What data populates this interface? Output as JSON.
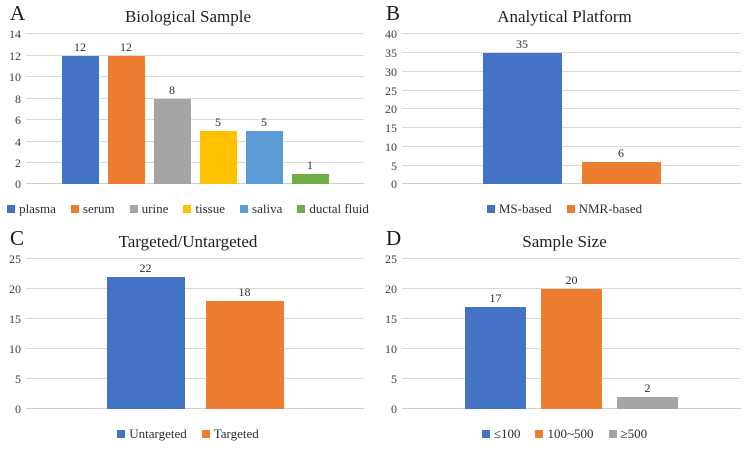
{
  "page": {
    "background": "#ffffff"
  },
  "palette": {
    "blue": "#4472C4",
    "orange": "#ED7D31",
    "gray": "#A5A5A5",
    "gold": "#FFC000",
    "light_blue": "#5B9BD5",
    "green": "#70AD47",
    "gridline": "#D9D9D9"
  },
  "chart_data": [
    {
      "type": "bar",
      "panel": "A",
      "title": "Biological Sample",
      "categories": [
        "plasma",
        "serum",
        "urine",
        "tissue",
        "saliva",
        "ductal fluid"
      ],
      "values": [
        12,
        12,
        8,
        5,
        5,
        1
      ],
      "colors": [
        "#4472C4",
        "#ED7D31",
        "#A5A5A5",
        "#FFC000",
        "#5B9BD5",
        "#70AD47"
      ],
      "ylim": [
        0,
        14
      ],
      "ytick_step": 2,
      "grid": true,
      "value_labels": true,
      "legend_position": "bottom"
    },
    {
      "type": "bar",
      "panel": "B",
      "title": "Analytical Platform",
      "categories": [
        "MS-based",
        "NMR-based"
      ],
      "values": [
        35,
        6
      ],
      "colors": [
        "#4472C4",
        "#ED7D31"
      ],
      "ylim": [
        0,
        40
      ],
      "ytick_step": 5,
      "grid": true,
      "value_labels": true,
      "legend_position": "bottom"
    },
    {
      "type": "bar",
      "panel": "C",
      "title": "Targeted/Untargeted",
      "categories": [
        "Untargeted",
        "Targeted"
      ],
      "values": [
        22,
        18
      ],
      "colors": [
        "#4472C4",
        "#ED7D31"
      ],
      "ylim": [
        0,
        25
      ],
      "ytick_step": 5,
      "grid": true,
      "value_labels": true,
      "legend_position": "bottom"
    },
    {
      "type": "bar",
      "panel": "D",
      "title": "Sample Size",
      "categories": [
        "≤100",
        "100~500",
        "≥500"
      ],
      "values": [
        17,
        20,
        2
      ],
      "colors": [
        "#4472C4",
        "#ED7D31",
        "#A5A5A5"
      ],
      "ylim": [
        0,
        25
      ],
      "ytick_step": 5,
      "grid": true,
      "value_labels": true,
      "legend_position": "bottom"
    }
  ]
}
